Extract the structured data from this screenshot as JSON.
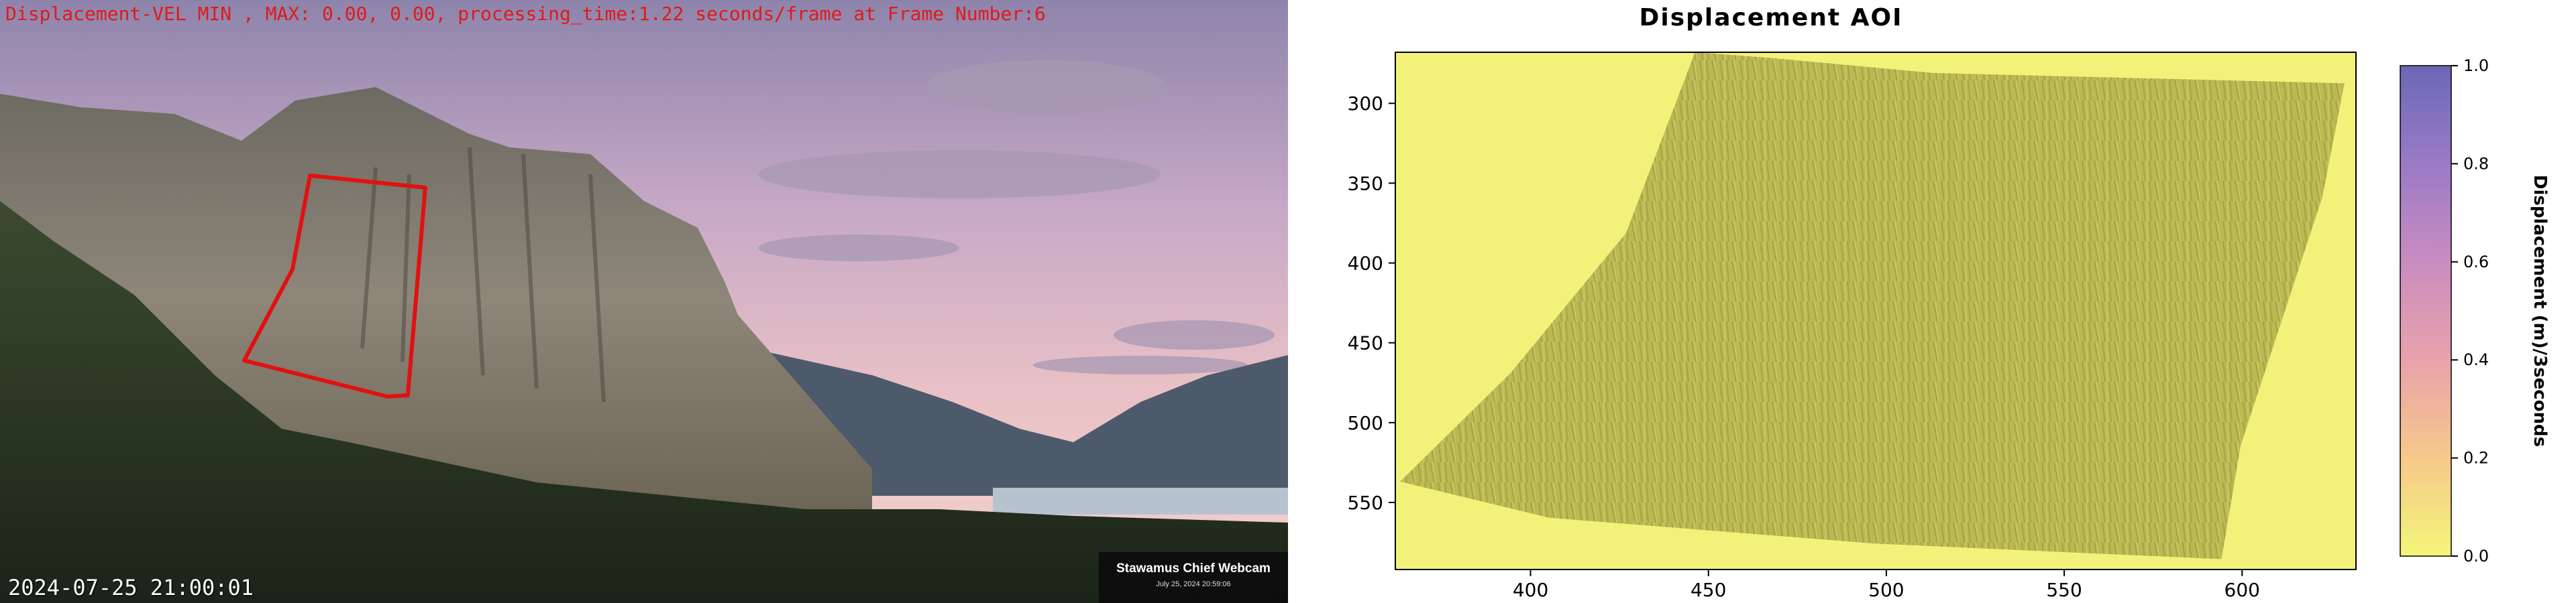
{
  "left_panel": {
    "overlay_text": "Displacement-VEL MIN , MAX: 0.00, 0.00, processing_time:1.22 seconds/frame at Frame Number:6",
    "timestamp": "2024-07-25 21:00:01",
    "webcam_badge": {
      "title": "Stawamus Chief Webcam",
      "date": "July 25, 2024 20:59:06"
    }
  },
  "right_panel": {
    "title": "Displacement AOI",
    "colorbar": {
      "label": "Displacement (m)/3seconds",
      "ticks": [
        "0.0",
        "0.2",
        "0.4",
        "0.6",
        "0.8",
        "1.0"
      ]
    }
  },
  "chart_data": {
    "type": "heatmap",
    "title": "Displacement AOI",
    "x_ticks": [
      400,
      450,
      500,
      550,
      600
    ],
    "y_ticks": [
      300,
      350,
      400,
      450,
      500,
      550
    ],
    "xlim": [
      362,
      632
    ],
    "ylim": [
      592,
      268
    ],
    "colorbar": {
      "label": "Displacement (m)/3seconds",
      "range": [
        0.0,
        1.0
      ],
      "ticks": [
        0.0,
        0.2,
        0.4,
        0.6,
        0.8,
        1.0
      ],
      "colors": [
        "#f5f57a",
        "#f5c98a",
        "#e9a2ab",
        "#c98cc0",
        "#9a7ac6",
        "#6a68b6"
      ]
    },
    "values_min": 0.0,
    "values_max": 0.0
  },
  "colors": {
    "overlay_red": "#e11a1a",
    "aoi_outline": "#e11111",
    "heatmap_fill": "#f2f27a"
  }
}
